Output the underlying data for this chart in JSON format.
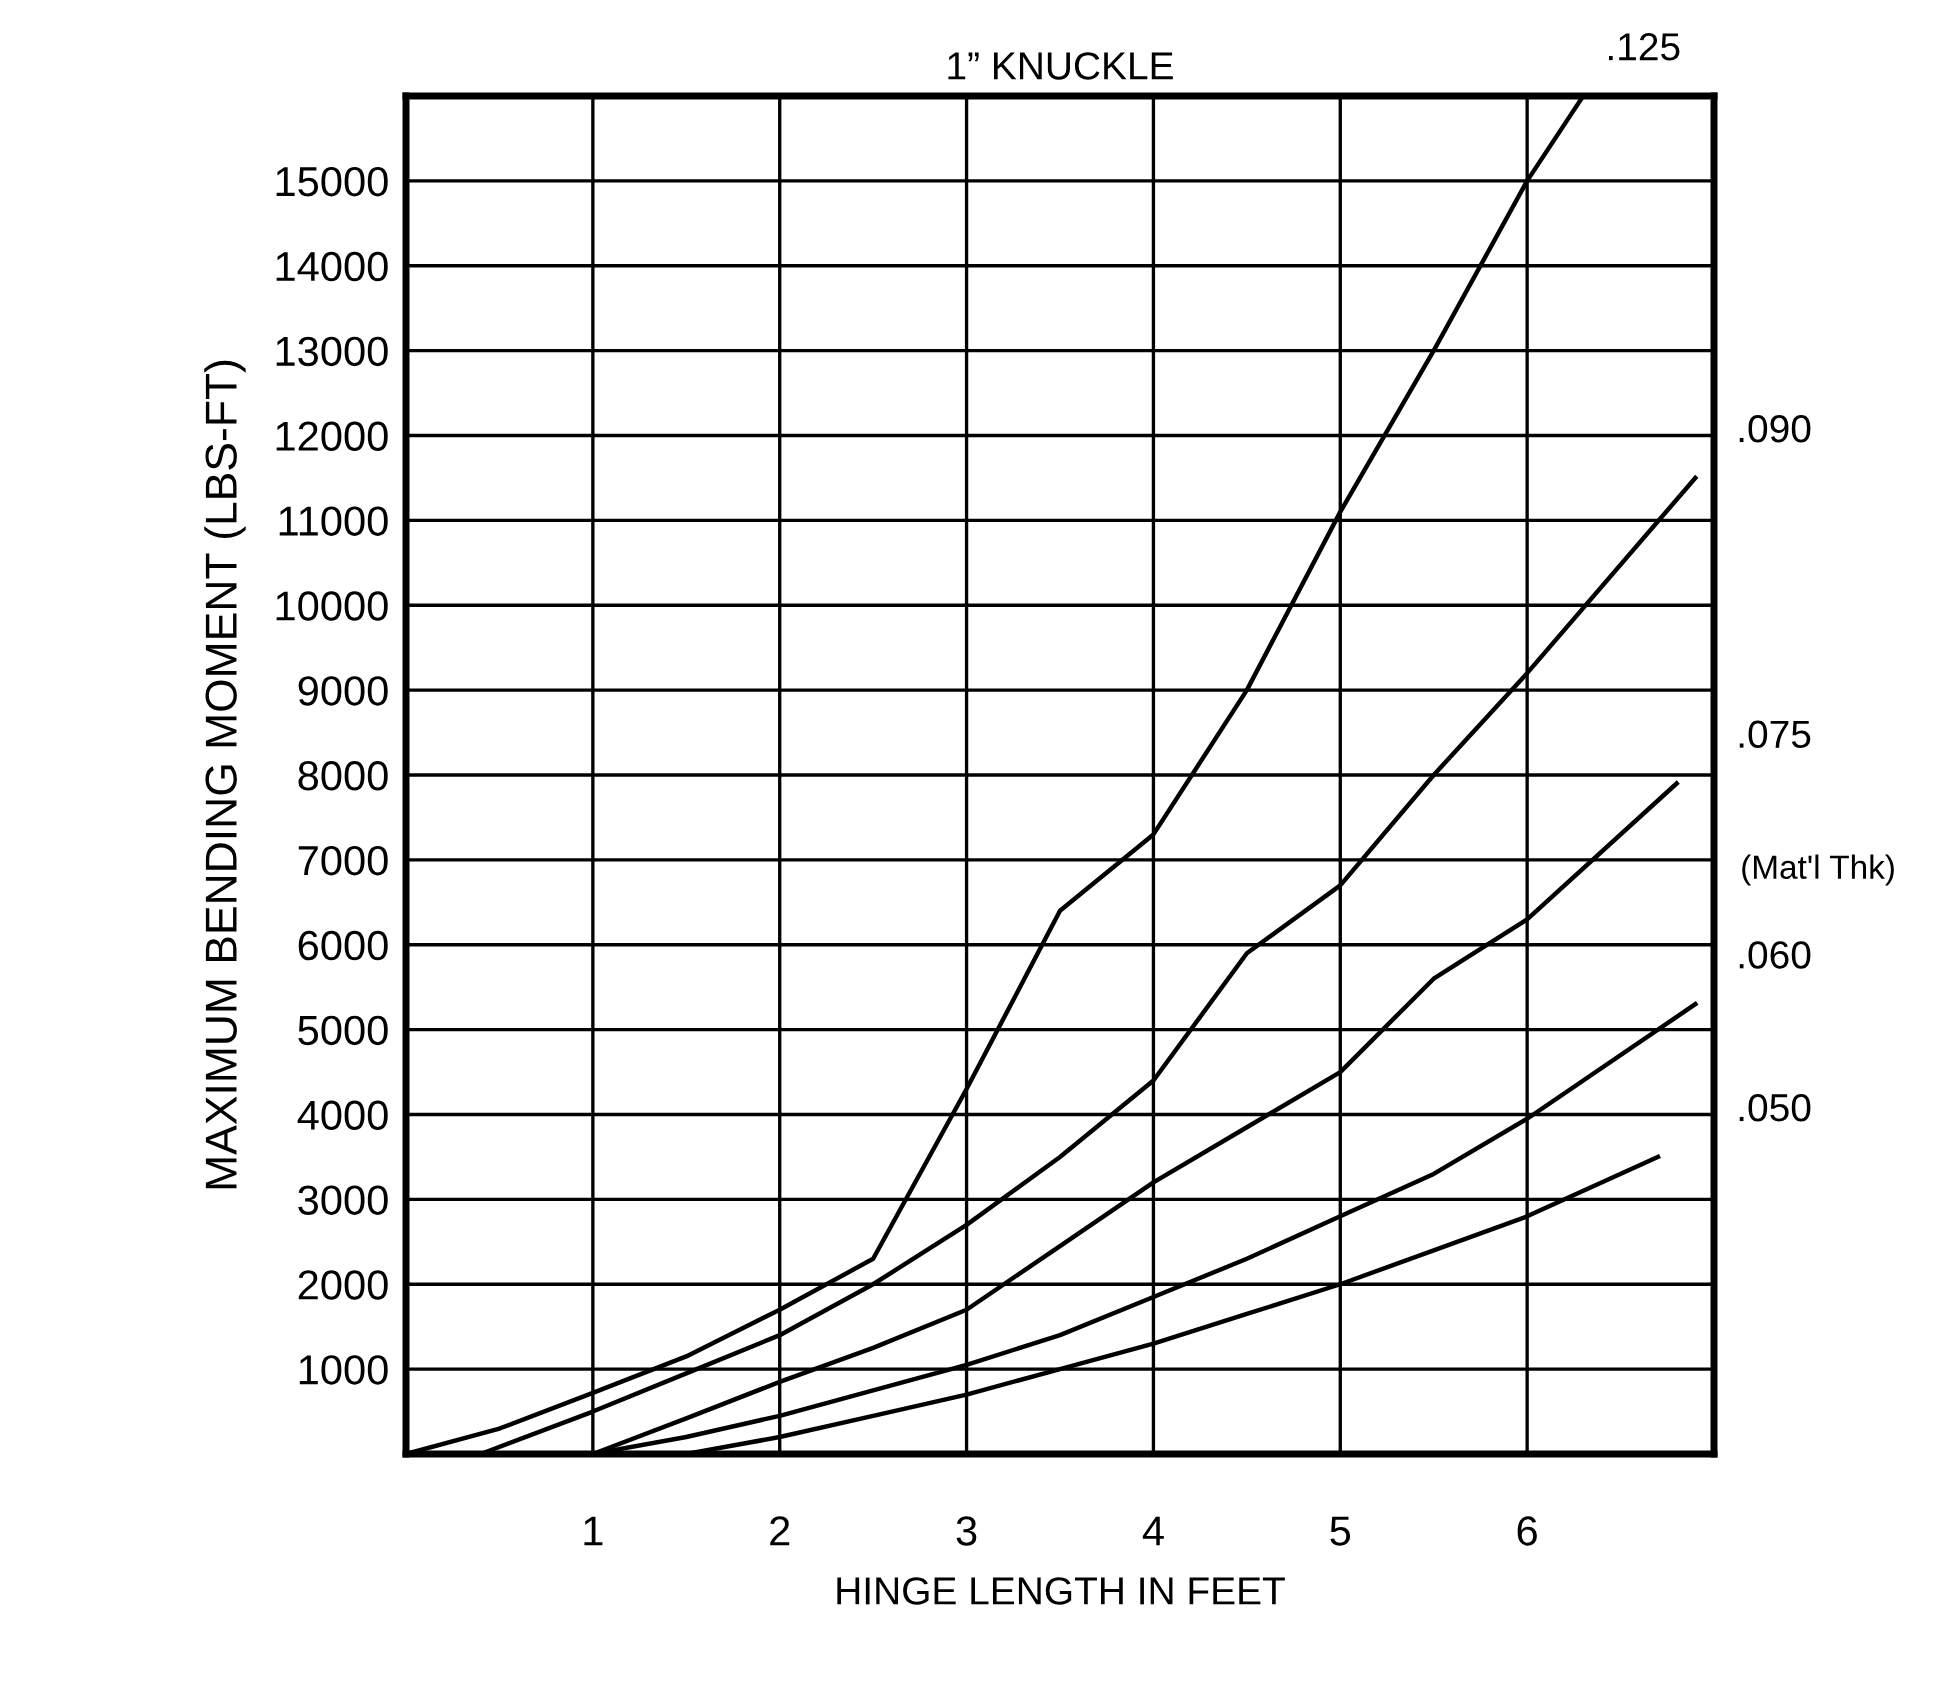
{
  "chart_data": {
    "type": "line",
    "title": "1” KNUCKLE",
    "xlabel": "HINGE LENGTH IN FEET",
    "ylabel": "MAXIMUM BENDING MOMENT (LBS-FT)",
    "series": [
      {
        "name": ".125",
        "color": "#000000",
        "x": [
          0,
          0.5,
          1,
          1.5,
          2,
          2.5,
          3,
          3.5,
          4,
          4.5,
          5,
          5.5,
          6,
          6.3
        ],
        "values": [
          0,
          300,
          720,
          1150,
          1700,
          2300,
          4300,
          6400,
          7300,
          9000,
          11100,
          13000,
          15000,
          16000
        ]
      },
      {
        "name": ".090",
        "color": "#000000",
        "x": [
          0.4,
          1,
          1.5,
          2,
          2.5,
          3,
          3.5,
          4,
          4.5,
          5,
          5.5,
          6,
          6.9
        ],
        "values": [
          0,
          500,
          950,
          1400,
          2000,
          2700,
          3500,
          4400,
          5900,
          6700,
          8000,
          9200,
          11500
        ]
      },
      {
        "name": ".075",
        "color": "#000000",
        "x": [
          1,
          1.5,
          2,
          2.5,
          3,
          3.5,
          4,
          4.5,
          5,
          5.5,
          6,
          6.8
        ],
        "values": [
          0,
          420,
          850,
          1250,
          1700,
          2450,
          3200,
          3850,
          4500,
          5600,
          6300,
          7900
        ]
      },
      {
        "name": ".060",
        "color": "#000000",
        "x": [
          1,
          1.5,
          2,
          2.5,
          3,
          3.5,
          4,
          4.5,
          5,
          5.5,
          6,
          6.9
        ],
        "values": [
          0,
          200,
          450,
          750,
          1050,
          1400,
          1850,
          2300,
          2800,
          3300,
          3950,
          5300
        ]
      },
      {
        "name": ".050",
        "color": "#000000",
        "x": [
          1.5,
          2,
          2.5,
          3,
          3.5,
          4,
          4.5,
          5,
          5.5,
          6,
          6.7
        ],
        "values": [
          0,
          200,
          450,
          700,
          1000,
          1300,
          1650,
          2000,
          2400,
          2800,
          3500
        ]
      }
    ],
    "annotations": [
      "(Mat'l Thk)"
    ],
    "xlim": [
      0,
      7
    ],
    "ylim": [
      0,
      16000
    ],
    "xticks": [
      1,
      2,
      3,
      4,
      5,
      6
    ],
    "yticks": [
      1000,
      2000,
      3000,
      4000,
      5000,
      6000,
      7000,
      8000,
      9000,
      10000,
      11000,
      12000,
      13000,
      14000,
      15000
    ],
    "grid": true,
    "legend": false,
    "marker": "none",
    "line_style": "solid"
  }
}
